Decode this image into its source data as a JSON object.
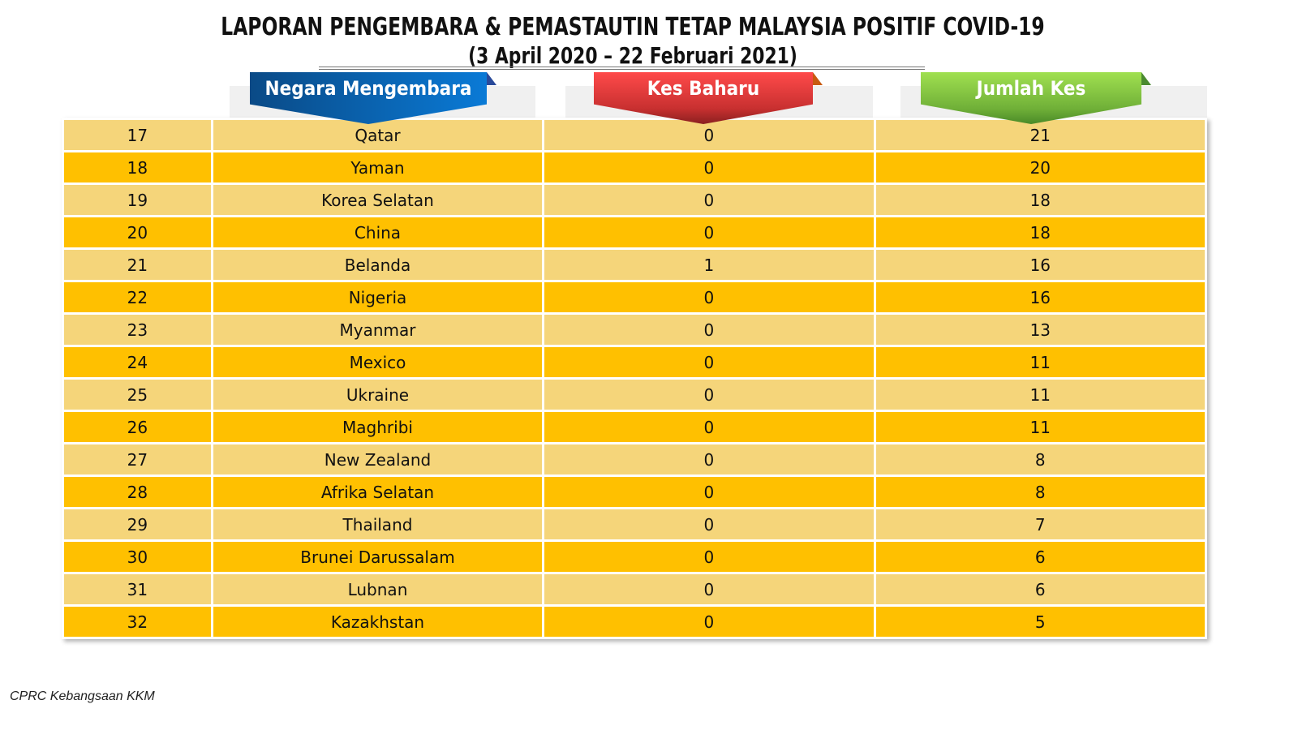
{
  "title": "LAPORAN PENGEMBARA & PEMASTAUTIN TETAP MALAYSIA POSITIF COVID-19",
  "subtitle": "(3 April 2020 – 22 Februari 2021)",
  "headers": [
    "Negara Mengembara",
    "Kes Baharu",
    "Jumlah Kes"
  ],
  "colors": {
    "header_blue": "#0a6ec0",
    "header_red": "#e83c3c",
    "header_green": "#86c640",
    "row_light": "#f5d57a",
    "row_dark": "#ffc000"
  },
  "rows": [
    [
      "17",
      "Qatar",
      "0",
      "21"
    ],
    [
      "18",
      "Yaman",
      "0",
      "20"
    ],
    [
      "19",
      "Korea Selatan",
      "0",
      "18"
    ],
    [
      "20",
      "China",
      "0",
      "18"
    ],
    [
      "21",
      "Belanda",
      "1",
      "16"
    ],
    [
      "22",
      "Nigeria",
      "0",
      "16"
    ],
    [
      "23",
      "Myanmar",
      "0",
      "13"
    ],
    [
      "24",
      "Mexico",
      "0",
      "11"
    ],
    [
      "25",
      "Ukraine",
      "0",
      "11"
    ],
    [
      "26",
      "Maghribi",
      "0",
      "11"
    ],
    [
      "27",
      "New Zealand",
      "0",
      "8"
    ],
    [
      "28",
      "Afrika Selatan",
      "0",
      "8"
    ],
    [
      "29",
      "Thailand",
      "0",
      "7"
    ],
    [
      "30",
      "Brunei Darussalam",
      "0",
      "6"
    ],
    [
      "31",
      "Lubnan",
      "0",
      "6"
    ],
    [
      "32",
      "Kazakhstan",
      "0",
      "5"
    ]
  ],
  "footer": "CPRC Kebangsaan KKM"
}
